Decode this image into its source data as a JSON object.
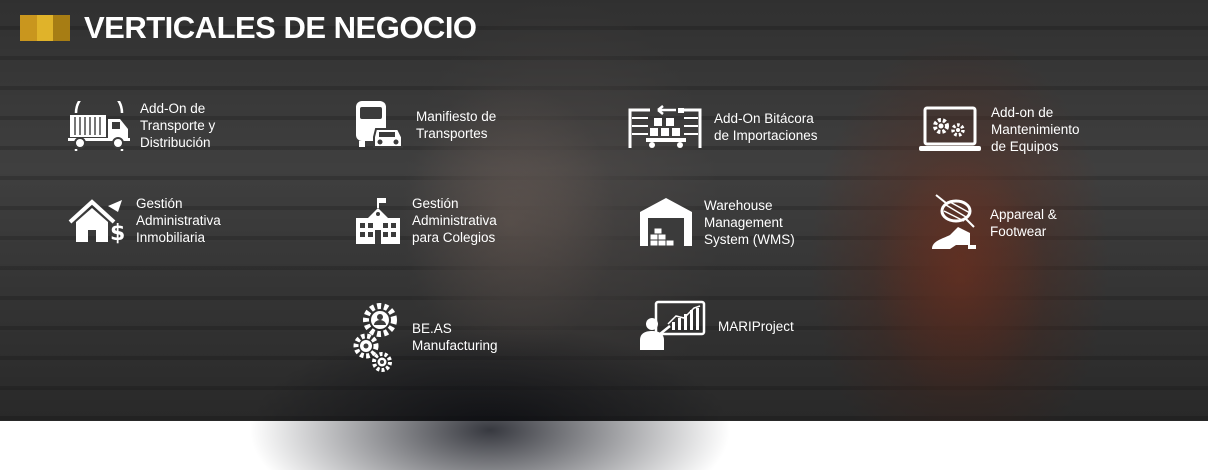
{
  "header": {
    "title": "VERTICALES DE NEGOCIO",
    "accent_colors": [
      "#c9961e",
      "#e0b32a",
      "#a77d14"
    ]
  },
  "items": [
    {
      "label": "Add-On de\nTransporte y\nDistribución",
      "icon": "truck-icon"
    },
    {
      "label": "Manifiesto de\nTransportes",
      "icon": "bus-car-icon"
    },
    {
      "label": "Add-On Bitácora\nde Importaciones",
      "icon": "import-cargo-icon"
    },
    {
      "label": "Add-on de\nMantenimiento\nde Equipos",
      "icon": "laptop-gears-icon"
    },
    {
      "label": "Gestión\nAdministrativa\nInmobiliaria",
      "icon": "house-dollar-icon"
    },
    {
      "label": "Gestión\nAdministrativa\npara Colegios",
      "icon": "school-building-icon"
    },
    {
      "label": "Warehouse\nManagement\nSystem (WMS)",
      "icon": "warehouse-icon"
    },
    {
      "label": "Appareal &\nFootwear",
      "icon": "thread-shoe-icon"
    },
    {
      "label": "BE.AS\nManufacturing",
      "icon": "gears-people-icon"
    },
    {
      "label": "MARIProject",
      "icon": "presenter-chart-icon"
    }
  ]
}
